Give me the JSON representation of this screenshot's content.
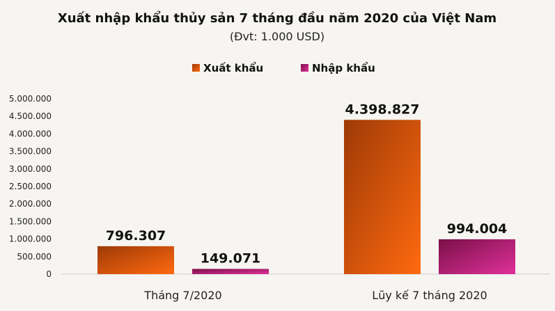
{
  "chart_data": {
    "type": "bar",
    "title": "Xuất nhập khẩu thủy sản 7 tháng đầu năm 2020 của Việt Nam",
    "subtitle": "(Đvt: 1.000 USD)",
    "categories": [
      "Tháng 7/2020",
      "Lũy kế 7 tháng 2020"
    ],
    "series": [
      {
        "name": "Xuất khẩu",
        "values": [
          796307,
          4398827
        ],
        "labels": [
          "796.307",
          "4.398.827"
        ]
      },
      {
        "name": "Nhập khẩu",
        "values": [
          149071,
          994004
        ],
        "labels": [
          "149.071",
          "994.004"
        ]
      }
    ],
    "ylim": [
      0,
      5000000
    ],
    "yticks": [
      0,
      500000,
      1000000,
      1500000,
      2000000,
      2500000,
      3000000,
      3500000,
      4000000,
      4500000,
      5000000
    ],
    "ytick_labels": [
      "0",
      "500.000",
      "1.000.000",
      "1.500.000",
      "2.000.000",
      "2.500.000",
      "3.000.000",
      "3.500.000",
      "4.000.000",
      "4.500.000",
      "5.000.000"
    ],
    "legend_position": "top",
    "grid": false,
    "colors": {
      "series_0": [
        "#9e3a06",
        "#ff6a10"
      ],
      "series_1": [
        "#7a1048",
        "#e0309a"
      ],
      "axis": "#d0d0d0"
    }
  }
}
